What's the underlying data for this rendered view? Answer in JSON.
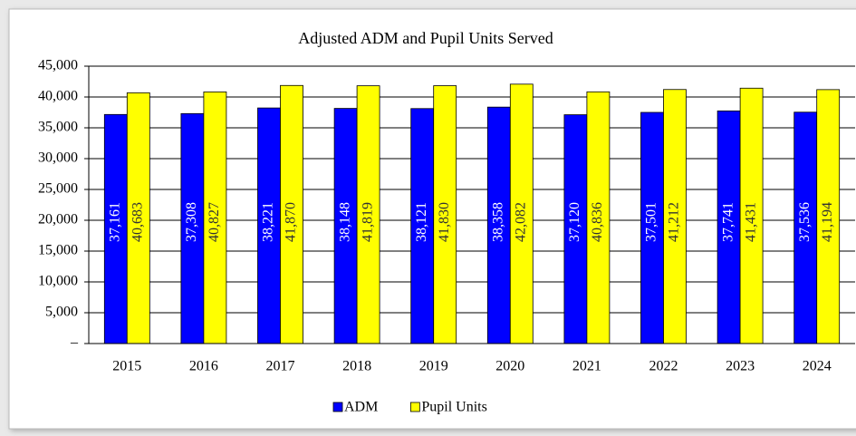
{
  "chart_data": {
    "type": "bar",
    "title": "Adjusted ADM and Pupil Units Served",
    "categories": [
      "2015",
      "2016",
      "2017",
      "2018",
      "2019",
      "2020",
      "2021",
      "2022",
      "2023",
      "2024"
    ],
    "series": [
      {
        "name": "ADM",
        "color": "#0000ff",
        "values": [
          37161,
          37308,
          38221,
          38148,
          38121,
          38358,
          37120,
          37501,
          37741,
          37536
        ],
        "value_labels": [
          "37,161",
          "37,308",
          "38,221",
          "38,148",
          "38,121",
          "38,358",
          "37,120",
          "37,501",
          "37,741",
          "37,536"
        ]
      },
      {
        "name": "Pupil Units",
        "color": "#ffff00",
        "values": [
          40683,
          40827,
          41870,
          41819,
          41830,
          42082,
          40836,
          41212,
          41431,
          41194
        ],
        "value_labels": [
          "40,683",
          "40,827",
          "41,870",
          "41,819",
          "41,830",
          "42,082",
          "40,836",
          "41,212",
          "41,431",
          "41,194"
        ]
      }
    ],
    "ylim": [
      0,
      45000
    ],
    "yticks": [
      {
        "value": 0,
        "label": "–"
      },
      {
        "value": 5000,
        "label": "5,000"
      },
      {
        "value": 10000,
        "label": "10,000"
      },
      {
        "value": 15000,
        "label": "15,000"
      },
      {
        "value": 20000,
        "label": "20,000"
      },
      {
        "value": 25000,
        "label": "25,000"
      },
      {
        "value": 30000,
        "label": "30,000"
      },
      {
        "value": 35000,
        "label": "35,000"
      },
      {
        "value": 40000,
        "label": "40,000"
      },
      {
        "value": 45000,
        "label": "45,000"
      }
    ],
    "grid": true,
    "legend": "bottom"
  }
}
